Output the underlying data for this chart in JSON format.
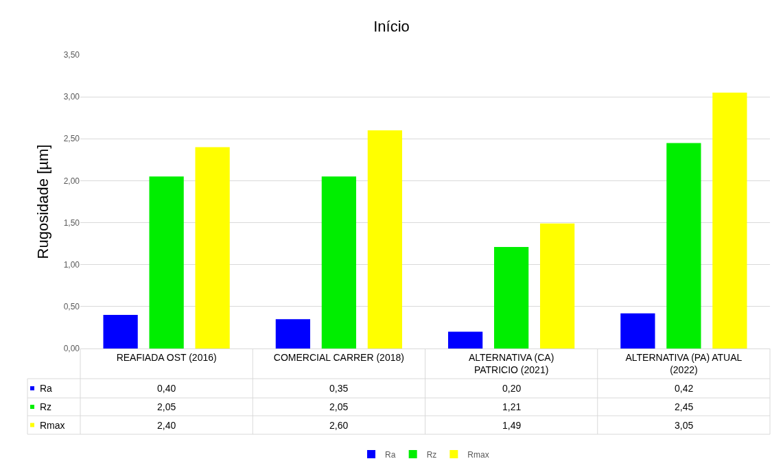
{
  "chart_data": {
    "type": "bar",
    "title": "Início",
    "ylabel": "Rugosidade [µm]",
    "categories": [
      "REAFIADA OST (2016)",
      "COMERCIAL CARRER (2018)",
      "ALTERNATIVA (CA) PATRICIO (2021)",
      "ALTERNATIVA (PA) ATUAL (2022)"
    ],
    "series": [
      {
        "name": "Ra",
        "color": "#0000ff",
        "values": [
          0.4,
          0.35,
          0.2,
          0.42
        ],
        "value_labels": [
          "0,40",
          "0,35",
          "0,20",
          "0,42"
        ]
      },
      {
        "name": "Rz",
        "color": "#00ee00",
        "values": [
          2.05,
          2.05,
          1.21,
          2.45
        ],
        "value_labels": [
          "2,05",
          "2,05",
          "1,21",
          "2,45"
        ]
      },
      {
        "name": "Rmax",
        "color": "#ffff00",
        "values": [
          2.4,
          2.6,
          1.49,
          3.05
        ],
        "value_labels": [
          "2,40",
          "2,60",
          "1,49",
          "3,05"
        ]
      }
    ],
    "ylim": [
      0,
      3.5
    ],
    "yticks": [
      {
        "value": 0,
        "label": "0,00"
      },
      {
        "value": 0.5,
        "label": "0,50"
      },
      {
        "value": 1,
        "label": "1,00"
      },
      {
        "value": 1.5,
        "label": "1,50"
      },
      {
        "value": 2,
        "label": "2,00"
      },
      {
        "value": 2.5,
        "label": "2,50"
      },
      {
        "value": 3,
        "label": "3,00"
      },
      {
        "value": 3.5,
        "label": "3,50"
      }
    ],
    "grid": "y",
    "legend": "bottom"
  }
}
